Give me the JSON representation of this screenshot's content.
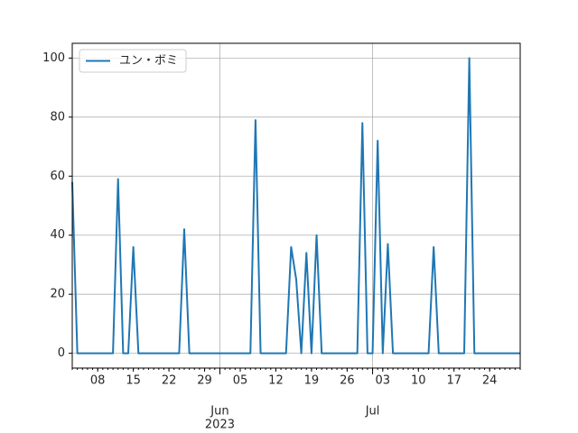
{
  "chart_data": {
    "type": "line",
    "x": [
      "2023-05-03",
      "2023-05-04",
      "2023-05-05",
      "2023-05-06",
      "2023-05-07",
      "2023-05-08",
      "2023-05-09",
      "2023-05-10",
      "2023-05-11",
      "2023-05-12",
      "2023-05-13",
      "2023-05-14",
      "2023-05-15",
      "2023-05-16",
      "2023-05-17",
      "2023-05-18",
      "2023-05-19",
      "2023-05-20",
      "2023-05-21",
      "2023-05-22",
      "2023-05-23",
      "2023-05-24",
      "2023-05-25",
      "2023-05-26",
      "2023-05-27",
      "2023-05-28",
      "2023-05-29",
      "2023-05-30",
      "2023-05-31",
      "2023-06-01",
      "2023-06-02",
      "2023-06-03",
      "2023-06-04",
      "2023-06-05",
      "2023-06-06",
      "2023-06-07",
      "2023-06-08",
      "2023-06-09",
      "2023-06-10",
      "2023-06-11",
      "2023-06-12",
      "2023-06-13",
      "2023-06-14",
      "2023-06-15",
      "2023-06-16",
      "2023-06-17",
      "2023-06-18",
      "2023-06-19",
      "2023-06-20",
      "2023-06-21",
      "2023-06-22",
      "2023-06-23",
      "2023-06-24",
      "2023-06-25",
      "2023-06-26",
      "2023-06-27",
      "2023-06-28",
      "2023-06-29",
      "2023-06-30",
      "2023-07-01",
      "2023-07-02",
      "2023-07-03",
      "2023-07-04",
      "2023-07-05",
      "2023-07-06",
      "2023-07-07",
      "2023-07-08",
      "2023-07-09",
      "2023-07-10",
      "2023-07-11",
      "2023-07-12",
      "2023-07-13",
      "2023-07-14",
      "2023-07-15",
      "2023-07-16",
      "2023-07-17",
      "2023-07-18",
      "2023-07-19",
      "2023-07-20",
      "2023-07-21",
      "2023-07-22",
      "2023-07-23",
      "2023-07-24",
      "2023-07-25",
      "2023-07-26",
      "2023-07-27",
      "2023-07-28",
      "2023-07-29",
      "2023-07-30"
    ],
    "series": [
      {
        "name": "ユン・ボミ",
        "color": "#1f77b4",
        "values": [
          58,
          0,
          0,
          0,
          0,
          0,
          0,
          0,
          0,
          59,
          0,
          0,
          36,
          0,
          0,
          0,
          0,
          0,
          0,
          0,
          0,
          0,
          42,
          0,
          0,
          0,
          0,
          0,
          0,
          0,
          0,
          0,
          0,
          0,
          0,
          0,
          79,
          0,
          0,
          0,
          0,
          0,
          0,
          36,
          25,
          0,
          34,
          0,
          40,
          0,
          0,
          0,
          0,
          0,
          0,
          0,
          0,
          78,
          0,
          0,
          72,
          0,
          37,
          0,
          0,
          0,
          0,
          0,
          0,
          0,
          0,
          36,
          0,
          0,
          0,
          0,
          0,
          0,
          100,
          0,
          0,
          0,
          0,
          0,
          0,
          0,
          0,
          0,
          0
        ]
      }
    ],
    "xlim": [
      "2023-05-03",
      "2023-07-30"
    ],
    "xticks": [
      {
        "value": "2023-06-01",
        "label": "Jun"
      },
      {
        "value": "2023-07-01",
        "label": "Jul"
      }
    ],
    "xminor_ticks": [
      {
        "value": "2023-05-08",
        "label": "08"
      },
      {
        "value": "2023-05-15",
        "label": "15"
      },
      {
        "value": "2023-05-22",
        "label": "22"
      },
      {
        "value": "2023-05-29",
        "label": "29"
      },
      {
        "value": "2023-06-05",
        "label": "05"
      },
      {
        "value": "2023-06-12",
        "label": "12"
      },
      {
        "value": "2023-06-19",
        "label": "19"
      },
      {
        "value": "2023-06-26",
        "label": "26"
      },
      {
        "value": "2023-07-03",
        "label": "03"
      },
      {
        "value": "2023-07-10",
        "label": "10"
      },
      {
        "value": "2023-07-17",
        "label": "17"
      },
      {
        "value": "2023-07-24",
        "label": "24"
      }
    ],
    "x_offset_label": "2023",
    "ylim": [
      -5,
      105
    ],
    "yticks": [
      0,
      20,
      40,
      60,
      80,
      100
    ],
    "grid": true,
    "legend": "upper left"
  }
}
